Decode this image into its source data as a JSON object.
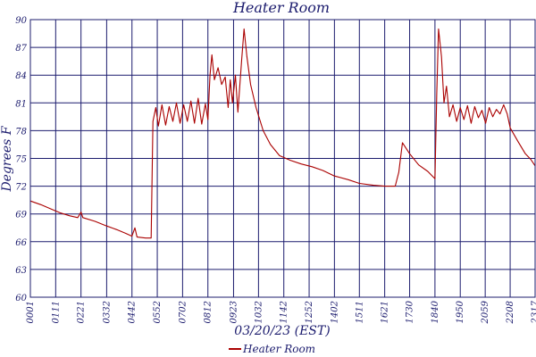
{
  "chart_data": {
    "type": "line",
    "title": "Heater Room",
    "xlabel": "03/20/23 (EST)",
    "ylabel": "Degrees F",
    "ylim": [
      60,
      90
    ],
    "yticks": [
      60,
      63,
      66,
      69,
      72,
      75,
      78,
      81,
      84,
      87,
      90
    ],
    "ytick_labels": [
      "60",
      "63",
      "66",
      "69",
      "72",
      "75",
      "78",
      "81",
      "84",
      "87",
      "90"
    ],
    "xlim": [
      "00:01",
      "23:17"
    ],
    "xtick_labels": [
      "00:01",
      "01:11",
      "02:21",
      "03:32",
      "04:42",
      "05:52",
      "07:02",
      "08:12",
      "09:23",
      "10:32",
      "11:42",
      "12:52",
      "14:02",
      "15:11",
      "16:21",
      "17:30",
      "18:40",
      "19:50",
      "20:59",
      "22:08",
      "23:17"
    ],
    "grid": true,
    "legend": {
      "position": "bottom-center",
      "entries": [
        "Heater Room"
      ]
    },
    "series": [
      {
        "name": "Heater Room",
        "color": "#aa0000",
        "points": [
          [
            "00:01",
            70.4
          ],
          [
            "00:30",
            70.0
          ],
          [
            "01:00",
            69.5
          ],
          [
            "01:25",
            69.1
          ],
          [
            "01:50",
            68.8
          ],
          [
            "02:12",
            68.6
          ],
          [
            "02:21",
            69.2
          ],
          [
            "02:26",
            68.6
          ],
          [
            "03:00",
            68.2
          ],
          [
            "03:32",
            67.7
          ],
          [
            "04:00",
            67.3
          ],
          [
            "04:25",
            66.9
          ],
          [
            "04:42",
            66.6
          ],
          [
            "04:50",
            67.5
          ],
          [
            "04:56",
            66.5
          ],
          [
            "05:20",
            66.4
          ],
          [
            "05:35",
            66.4
          ],
          [
            "05:40",
            79.0
          ],
          [
            "05:48",
            80.5
          ],
          [
            "05:55",
            78.5
          ],
          [
            "06:05",
            80.8
          ],
          [
            "06:15",
            78.6
          ],
          [
            "06:25",
            80.6
          ],
          [
            "06:35",
            79.0
          ],
          [
            "06:45",
            81.0
          ],
          [
            "06:55",
            78.8
          ],
          [
            "07:05",
            80.8
          ],
          [
            "07:15",
            79.0
          ],
          [
            "07:25",
            81.2
          ],
          [
            "07:35",
            78.8
          ],
          [
            "07:45",
            81.5
          ],
          [
            "07:55",
            78.7
          ],
          [
            "08:05",
            80.9
          ],
          [
            "08:12",
            79.2
          ],
          [
            "08:18",
            84.0
          ],
          [
            "08:23",
            86.2
          ],
          [
            "08:30",
            83.5
          ],
          [
            "08:40",
            84.8
          ],
          [
            "08:50",
            83.0
          ],
          [
            "09:00",
            83.8
          ],
          [
            "09:08",
            80.5
          ],
          [
            "09:14",
            83.5
          ],
          [
            "09:20",
            81.0
          ],
          [
            "09:28",
            84.0
          ],
          [
            "09:35",
            80.0
          ],
          [
            "09:45",
            85.5
          ],
          [
            "09:52",
            89.0
          ],
          [
            "10:00",
            86.0
          ],
          [
            "10:10",
            83.0
          ],
          [
            "10:25",
            80.5
          ],
          [
            "10:45",
            78.0
          ],
          [
            "11:05",
            76.5
          ],
          [
            "11:30",
            75.3
          ],
          [
            "12:00",
            74.8
          ],
          [
            "12:30",
            74.4
          ],
          [
            "13:00",
            74.1
          ],
          [
            "13:30",
            73.7
          ],
          [
            "14:02",
            73.1
          ],
          [
            "14:40",
            72.7
          ],
          [
            "15:11",
            72.3
          ],
          [
            "15:50",
            72.1
          ],
          [
            "16:21",
            72.0
          ],
          [
            "16:50",
            72.0
          ],
          [
            "17:00",
            73.5
          ],
          [
            "17:10",
            76.7
          ],
          [
            "17:30",
            75.5
          ],
          [
            "17:55",
            74.3
          ],
          [
            "18:20",
            73.6
          ],
          [
            "18:40",
            72.8
          ],
          [
            "18:45",
            82.0
          ],
          [
            "18:50",
            89.0
          ],
          [
            "18:58",
            86.0
          ],
          [
            "19:05",
            81.0
          ],
          [
            "19:12",
            82.8
          ],
          [
            "19:20",
            79.5
          ],
          [
            "19:30",
            80.8
          ],
          [
            "19:40",
            79.0
          ],
          [
            "19:50",
            80.5
          ],
          [
            "20:00",
            79.2
          ],
          [
            "20:10",
            80.7
          ],
          [
            "20:20",
            78.8
          ],
          [
            "20:30",
            80.6
          ],
          [
            "20:40",
            79.4
          ],
          [
            "20:50",
            80.2
          ],
          [
            "21:00",
            78.8
          ],
          [
            "21:10",
            80.5
          ],
          [
            "21:20",
            79.5
          ],
          [
            "21:30",
            80.3
          ],
          [
            "21:40",
            79.8
          ],
          [
            "21:50",
            80.8
          ],
          [
            "22:00",
            79.8
          ],
          [
            "22:08",
            78.3
          ],
          [
            "22:30",
            76.8
          ],
          [
            "22:50",
            75.5
          ],
          [
            "23:05",
            74.9
          ],
          [
            "23:17",
            74.2
          ]
        ]
      }
    ]
  }
}
